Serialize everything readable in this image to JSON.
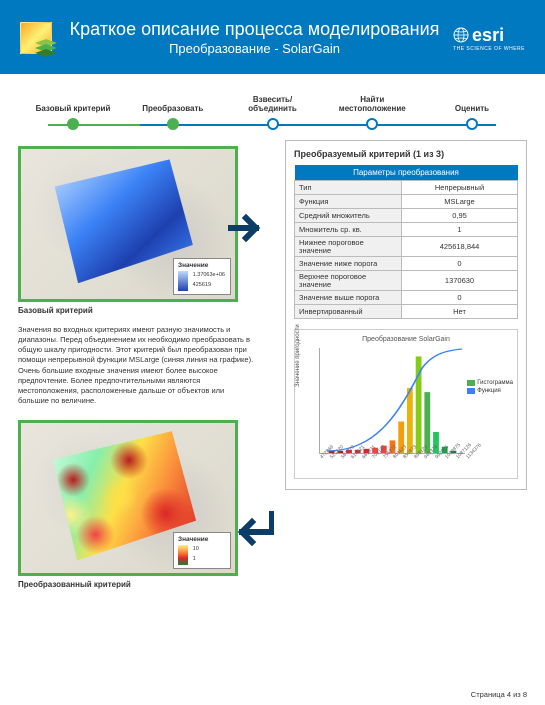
{
  "header": {
    "title": "Краткое описание процесса моделирования",
    "subtitle": "Преобразование - SolarGain",
    "brand": "esri",
    "tagline": "THE SCIENCE OF WHERE"
  },
  "stepper": {
    "steps": [
      {
        "label": "Базовый критерий",
        "filled": true
      },
      {
        "label": "Преобразовать",
        "filled": true
      },
      {
        "label": "Взвесить/ объединить",
        "filled": false
      },
      {
        "label": "Найти местоположение",
        "filled": false
      },
      {
        "label": "Оценить",
        "filled": false
      }
    ],
    "line_color_done": "#4caf50",
    "line_color_todo": "#0079c1"
  },
  "map1": {
    "caption": "Базовый критерий",
    "legend_title": "Значение",
    "legend_high": "1.37063e+06",
    "legend_low": "425619",
    "gradient_top": "#bfdbfe",
    "gradient_bottom": "#1e40af"
  },
  "map2": {
    "caption": "Преобразованный критерий",
    "legend_title": "Значение",
    "legend_high": "10",
    "legend_low": "1",
    "gradient_top": "#fef08a",
    "gradient_mid": "#fb923c",
    "gradient_bottom": "#15803d"
  },
  "body_text": "Значения во входных критериях имеют разную значимость и диапазоны. Перед объединением их необходимо преобразовать в общую шкалу пригодности. Этот критерий был преобразован при помощи непрерывной функции MSLarge (синяя линия на графике). Очень большие входные значения имеют более высокое предпочтение. Более предпочтительными являются местоположения, расположенные дальше от объектов или большие по величине.",
  "panel": {
    "title": "Преобразуемый критерий (1 из 3)",
    "params_header": "Параметры преобразования",
    "rows": [
      {
        "k": "Тип",
        "v": "Непрерывный"
      },
      {
        "k": "Функция",
        "v": "MSLarge"
      },
      {
        "k": "Средний множитель",
        "v": "0,95"
      },
      {
        "k": "Множитель ср. кв.",
        "v": "1"
      },
      {
        "k": "Нижнее пороговое значение",
        "v": "425618,844"
      },
      {
        "k": "Значение ниже порога",
        "v": "0"
      },
      {
        "k": "Верхнее пороговое значение",
        "v": "1370630"
      },
      {
        "k": "Значение выше порога",
        "v": "0"
      },
      {
        "k": "Инвертированный",
        "v": "Нет"
      }
    ]
  },
  "chart": {
    "title": "Преобразование SolarGain",
    "ylabel": "Значение пригодности",
    "ylim": [
      0,
      10
    ],
    "legend": [
      {
        "label": "Гистограмма",
        "color": "#4caf50"
      },
      {
        "label": "Функция",
        "color": "#3b82f6"
      }
    ],
    "bars": [
      {
        "x": 0.08,
        "h": 0.02,
        "c": "#b91c1c"
      },
      {
        "x": 0.14,
        "h": 0.02,
        "c": "#b91c1c"
      },
      {
        "x": 0.2,
        "h": 0.03,
        "c": "#dc2626"
      },
      {
        "x": 0.26,
        "h": 0.03,
        "c": "#dc2626"
      },
      {
        "x": 0.32,
        "h": 0.04,
        "c": "#dc2626"
      },
      {
        "x": 0.38,
        "h": 0.05,
        "c": "#ef4444"
      },
      {
        "x": 0.44,
        "h": 0.07,
        "c": "#ef4444"
      },
      {
        "x": 0.5,
        "h": 0.12,
        "c": "#f97316"
      },
      {
        "x": 0.56,
        "h": 0.3,
        "c": "#f59e0b"
      },
      {
        "x": 0.62,
        "h": 0.62,
        "c": "#eab308"
      },
      {
        "x": 0.68,
        "h": 0.92,
        "c": "#84cc16"
      },
      {
        "x": 0.74,
        "h": 0.58,
        "c": "#4caf50"
      },
      {
        "x": 0.8,
        "h": 0.2,
        "c": "#22c55e"
      },
      {
        "x": 0.86,
        "h": 0.06,
        "c": "#16a34a"
      },
      {
        "x": 0.92,
        "h": 0.02,
        "c": "#15803d"
      }
    ],
    "curve_color": "#3b82f6",
    "xticks": [
      "472869",
      "520120",
      "567370",
      "614621",
      "661871",
      "709122",
      "756372",
      "803623",
      "850873",
      "898124",
      "945374",
      "992625",
      "1039875",
      "1087126",
      "1134376"
    ]
  },
  "arrows": {
    "color": "#0b3d66"
  },
  "footer": "Страница 4 из 8"
}
